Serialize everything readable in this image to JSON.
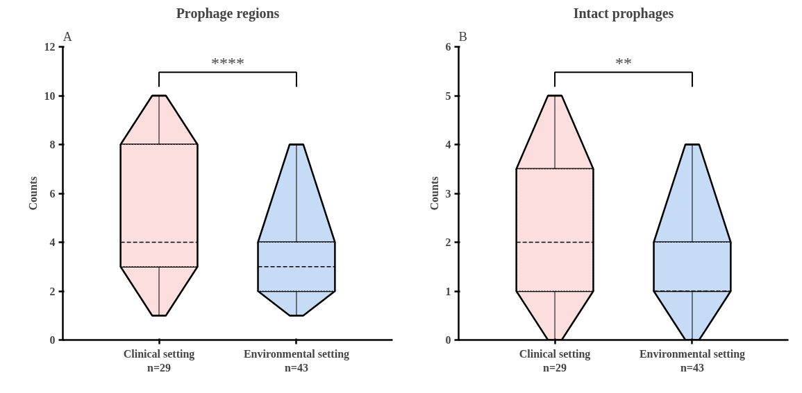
{
  "chart_data": [
    {
      "type": "box",
      "title": "Prophage regions",
      "ylabel": "Counts",
      "categories": [
        "Clinical setting\nn=29",
        "Environmental setting\nn=43"
      ],
      "colors": [
        "#fcdede",
        "#c6dbf5"
      ],
      "boxes": [
        {
          "low": 1,
          "q1": 3,
          "median": 4,
          "q3": 8,
          "high": 10
        },
        {
          "low": 1,
          "q1": 2,
          "median": 3,
          "q3": 4,
          "high": 8
        }
      ],
      "ylim": [
        0,
        12
      ],
      "yticks": [
        0,
        2,
        4,
        6,
        8,
        10,
        12
      ],
      "grid": false,
      "annotations": [
        "A",
        "****"
      ]
    },
    {
      "type": "box",
      "title": "Intact prophages",
      "ylabel": "Counts",
      "categories": [
        "Clinical setting\nn=29",
        "Environmental setting\nn=43"
      ],
      "colors": [
        "#fcdede",
        "#c6dbf5"
      ],
      "boxes": [
        {
          "low": 0,
          "q1": 1,
          "median": 2,
          "q3": 3.5,
          "high": 5
        },
        {
          "low": 0,
          "q1": 1,
          "median": 1,
          "q3": 2,
          "high": 4
        }
      ],
      "ylim": [
        0,
        6
      ],
      "yticks": [
        0,
        1,
        2,
        3,
        4,
        5,
        6
      ],
      "grid": false,
      "annotations": [
        "B",
        "**"
      ]
    }
  ]
}
